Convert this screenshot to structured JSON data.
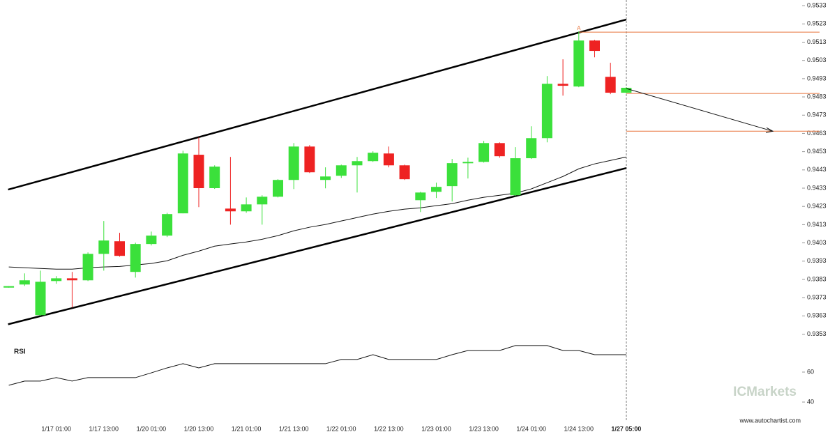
{
  "chart_data": [
    {
      "type": "candlestick",
      "categories": [
        null,
        null,
        null,
        "1/17 01:00",
        null,
        null,
        "1/17 13:00",
        null,
        null,
        "1/20 01:00",
        null,
        null,
        "1/20 13:00",
        null,
        null,
        "1/21 01:00",
        null,
        null,
        "1/21 13:00",
        null,
        null,
        "1/22 01:00",
        null,
        null,
        "1/22 13:00",
        null,
        null,
        "1/23 01:00",
        null,
        null,
        "1/23 13:00",
        null,
        null,
        "1/24 01:00",
        null,
        null,
        "1/24 13:00",
        null,
        null,
        "1/27 05:00"
      ],
      "open": [
        0.93785,
        0.93802,
        0.93634,
        0.93821,
        0.93836,
        0.93825,
        0.9397,
        0.94039,
        0.93871,
        0.94024,
        0.9407,
        0.94192,
        0.94513,
        0.9433,
        0.94218,
        0.94203,
        0.94241,
        0.94283,
        0.94375,
        0.94558,
        0.94375,
        0.94398,
        0.94455,
        0.94478,
        0.9452,
        0.94455,
        0.94264,
        0.9431,
        0.94341,
        0.9447,
        0.94474,
        0.94577,
        0.94291,
        0.94494,
        0.94604,
        0.94902,
        0.94887,
        0.95139,
        0.9494,
        0.94853
      ],
      "high": [
        0.93793,
        0.93863,
        0.93878,
        0.93848,
        0.93871,
        0.93978,
        0.9415,
        0.94085,
        0.94031,
        0.94092,
        0.94195,
        0.94535,
        0.94608,
        0.94455,
        0.94501,
        0.94279,
        0.94291,
        0.94379,
        0.94577,
        0.94566,
        0.94444,
        0.94459,
        0.94501,
        0.94532,
        0.94558,
        0.94459,
        0.9431,
        0.9436,
        0.9449,
        0.94497,
        0.94589,
        0.94581,
        0.94555,
        0.94669,
        0.94944,
        0.95036,
        0.95189,
        0.95143,
        0.95017,
        0.94884
      ],
      "low": [
        0.93785,
        0.93794,
        0.9363,
        0.93806,
        0.93676,
        0.93821,
        0.93878,
        0.93955,
        0.9384,
        0.94016,
        0.94062,
        0.94192,
        0.94226,
        0.94326,
        0.9413,
        0.94195,
        0.9413,
        0.94279,
        0.94325,
        0.94413,
        0.94329,
        0.94386,
        0.94306,
        0.94474,
        0.94444,
        0.94375,
        0.94199,
        0.94276,
        0.94257,
        0.94383,
        0.9447,
        0.94497,
        0.94287,
        0.9449,
        0.94581,
        0.94837,
        0.94883,
        0.95047,
        0.94845,
        0.94849
      ],
      "close": [
        0.93793,
        0.93825,
        0.93817,
        0.93836,
        0.93825,
        0.9397,
        0.94043,
        0.93959,
        0.94024,
        0.9407,
        0.94188,
        0.9452,
        0.9433,
        0.94448,
        0.94203,
        0.94241,
        0.94283,
        0.94375,
        0.94558,
        0.94417,
        0.94394,
        0.94455,
        0.94478,
        0.94524,
        0.94455,
        0.94379,
        0.94306,
        0.94337,
        0.94467,
        0.94474,
        0.94577,
        0.94505,
        0.94494,
        0.94604,
        0.94902,
        0.94891,
        0.95139,
        0.95082,
        0.94853,
        0.9488
      ],
      "up_color": "#3be03b",
      "down_color": "#ee2222",
      "moving_average": [
        0.93898,
        0.93894,
        0.9389,
        0.93886,
        0.93886,
        0.93894,
        0.93898,
        0.93901,
        0.93909,
        0.93917,
        0.93932,
        0.93962,
        0.93985,
        0.94012,
        0.94024,
        0.94035,
        0.9405,
        0.9407,
        0.94096,
        0.94116,
        0.94131,
        0.9415,
        0.94169,
        0.94188,
        0.94203,
        0.94215,
        0.94222,
        0.94234,
        0.94245,
        0.94264,
        0.9428,
        0.94291,
        0.94303,
        0.94326,
        0.9436,
        0.94394,
        0.94436,
        0.94463,
        0.94482,
        0.94501
      ],
      "channel_upper": [
        0.94322,
        0.95254
      ],
      "channel_lower": [
        0.93584,
        0.9444
      ],
      "levels": [
        0.95185,
        0.94849,
        0.94642
      ],
      "forecast": [
        0.94876,
        0.94642
      ],
      "marker": "A",
      "ylim": [
        0.9349,
        0.95361
      ],
      "yticks": [
        0.9533,
        0.9523,
        0.9513,
        0.9503,
        0.9493,
        0.9483,
        0.9473,
        0.9463,
        0.9453,
        0.9443,
        0.9433,
        0.9423,
        0.9413,
        0.9403,
        0.9393,
        0.9383,
        0.9373,
        0.9363,
        0.9353
      ]
    },
    {
      "type": "line",
      "title": "RSI",
      "values": [
        51.2,
        54,
        54,
        56.3,
        54,
        56.3,
        56.3,
        56.3,
        56.3,
        59.5,
        62.8,
        65.6,
        62.8,
        65.6,
        65.6,
        65.6,
        65.6,
        65.6,
        65.6,
        65.6,
        65.6,
        68.4,
        68.4,
        71.6,
        68.4,
        68.4,
        68.4,
        68.4,
        71.6,
        74.4,
        74.4,
        74.4,
        77.7,
        77.7,
        77.7,
        74.4,
        74.4,
        71.6,
        71.6,
        71.6
      ],
      "ylim": [
        29.3,
        85.1
      ],
      "yticks": [
        60,
        40
      ]
    }
  ],
  "watermark": "ICMarkets",
  "footer": "www.autochartist.com"
}
